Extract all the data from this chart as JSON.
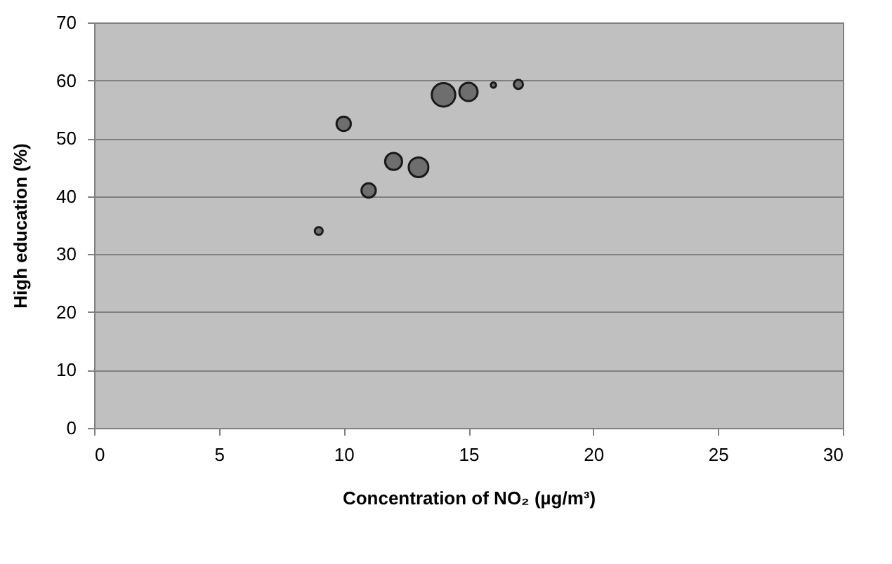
{
  "chart_data": {
    "type": "bubble",
    "xlabel": "Concentration of NO₂ (µg/m³)",
    "ylabel": "High education (%)",
    "x": [
      9,
      10,
      11,
      12,
      13,
      14,
      15,
      16,
      17
    ],
    "series": [
      {
        "color": "#6e6e6e",
        "values": [
          34,
          52.5,
          41,
          46,
          45,
          57.5,
          58,
          59.2,
          59.3
        ],
        "sizes": [
          0.11,
          0.37,
          0.37,
          0.52,
          0.7,
          1,
          0.6,
          0.05,
          0.15
        ]
      }
    ],
    "xlim": [
      0,
      30
    ],
    "xticks": [
      0,
      5,
      10,
      15,
      20,
      25,
      30
    ],
    "ylim": [
      0,
      70
    ],
    "yticks": [
      0,
      10,
      20,
      30,
      40,
      50,
      60,
      70
    ],
    "grid": "y",
    "legend": false
  }
}
